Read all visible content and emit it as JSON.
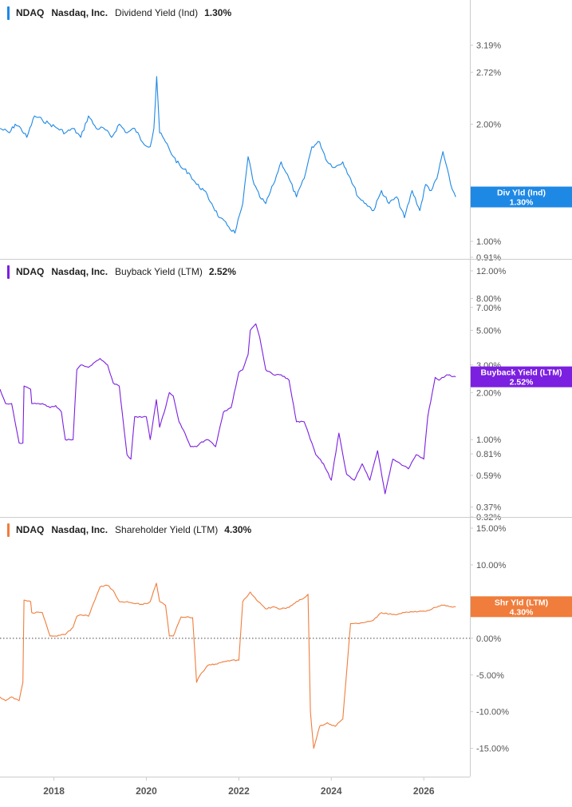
{
  "chart_data": [
    {
      "type": "line",
      "ticker": "NDAQ",
      "company": "Nasdaq, Inc.",
      "metric": "Dividend Yield (Ind)",
      "value_label": "1.30%",
      "color": "#1e88e5",
      "scale": "log",
      "ylim": [
        0.91,
        3.6
      ],
      "yticks": [
        {
          "v": 3.19,
          "label": "3.19%"
        },
        {
          "v": 2.72,
          "label": "2.72%"
        },
        {
          "v": 2.0,
          "label": "2.00%"
        },
        {
          "v": 1.0,
          "label": "1.00%"
        },
        {
          "v": 0.91,
          "label": "0.91%"
        }
      ],
      "end_badge": {
        "line1": "Div Yld (Ind)",
        "line2": "1.30%",
        "value": 1.3
      },
      "x": [
        "2016-11-01",
        "2017-01-15",
        "2017-03-01",
        "2017-04-15",
        "2017-06-01",
        "2017-08-01",
        "2017-10-01",
        "2017-12-01",
        "2018-02-01",
        "2018-04-01",
        "2018-06-01",
        "2018-08-01",
        "2018-10-01",
        "2018-12-01",
        "2019-02-01",
        "2019-04-01",
        "2019-06-01",
        "2019-08-01",
        "2019-10-01",
        "2019-12-01",
        "2020-02-01",
        "2020-03-01",
        "2020-03-23",
        "2020-04-15",
        "2020-06-01",
        "2020-08-01",
        "2020-10-01",
        "2020-12-01",
        "2021-02-01",
        "2021-04-01",
        "2021-06-01",
        "2021-08-01",
        "2021-10-01",
        "2021-12-01",
        "2022-02-01",
        "2022-03-15",
        "2022-05-01",
        "2022-06-15",
        "2022-08-01",
        "2022-10-01",
        "2022-12-01",
        "2023-02-01",
        "2023-04-01",
        "2023-06-01",
        "2023-08-01",
        "2023-10-01",
        "2023-12-01",
        "2024-02-01",
        "2024-04-01",
        "2024-06-01",
        "2024-08-01",
        "2024-10-01",
        "2024-12-01",
        "2025-02-01",
        "2025-04-01",
        "2025-06-01",
        "2025-08-01",
        "2025-10-01",
        "2025-12-01",
        "2026-01-15",
        "2026-03-01",
        "2026-04-15",
        "2026-06-01",
        "2026-08-01",
        "2026-09-10"
      ],
      "values": [
        1.95,
        1.9,
        2.0,
        1.95,
        1.85,
        2.1,
        2.05,
        2.0,
        1.95,
        1.9,
        1.95,
        1.85,
        2.1,
        1.95,
        1.95,
        1.85,
        2.0,
        1.9,
        1.95,
        1.8,
        1.75,
        1.95,
        2.65,
        1.9,
        1.8,
        1.65,
        1.55,
        1.5,
        1.4,
        1.35,
        1.25,
        1.15,
        1.1,
        1.05,
        1.25,
        1.65,
        1.4,
        1.3,
        1.25,
        1.4,
        1.6,
        1.45,
        1.3,
        1.45,
        1.75,
        1.8,
        1.6,
        1.55,
        1.6,
        1.45,
        1.3,
        1.25,
        1.2,
        1.35,
        1.25,
        1.3,
        1.15,
        1.35,
        1.2,
        1.4,
        1.35,
        1.45,
        1.7,
        1.4,
        1.3
      ]
    },
    {
      "type": "line",
      "ticker": "NDAQ",
      "company": "Nasdaq, Inc.",
      "metric": "Buyback Yield (LTM)",
      "value_label": "2.52%",
      "color": "#7b1fe0",
      "scale": "log",
      "ylim": [
        0.32,
        12.0
      ],
      "yticks": [
        {
          "v": 12.0,
          "label": "12.00%"
        },
        {
          "v": 8.0,
          "label": "8.00%"
        },
        {
          "v": 7.0,
          "label": "7.00%"
        },
        {
          "v": 5.0,
          "label": "5.00%"
        },
        {
          "v": 3.0,
          "label": "3.00%"
        },
        {
          "v": 2.0,
          "label": "2.00%"
        },
        {
          "v": 1.0,
          "label": "1.00%"
        },
        {
          "v": 0.81,
          "label": "0.81%"
        },
        {
          "v": 0.59,
          "label": "0.59%"
        },
        {
          "v": 0.37,
          "label": "0.37%"
        },
        {
          "v": 0.32,
          "label": "0.32%"
        }
      ],
      "end_badge": {
        "line1": "Buyback Yield (LTM)",
        "line2": "2.52%",
        "value": 2.52
      },
      "x": [
        "2016-11-01",
        "2016-12-15",
        "2017-02-01",
        "2017-04-01",
        "2017-05-01",
        "2017-05-10",
        "2017-07-01",
        "2017-07-10",
        "2017-10-01",
        "2017-12-01",
        "2018-01-15",
        "2018-03-01",
        "2018-04-01",
        "2018-06-01",
        "2018-07-01",
        "2018-08-01",
        "2018-10-01",
        "2019-01-01",
        "2019-03-01",
        "2019-04-15",
        "2019-06-01",
        "2019-08-01",
        "2019-09-01",
        "2019-10-01",
        "2020-01-01",
        "2020-02-01",
        "2020-03-20",
        "2020-04-15",
        "2020-06-01",
        "2020-07-01",
        "2020-08-01",
        "2020-09-15",
        "2020-11-01",
        "2020-12-15",
        "2021-02-01",
        "2021-03-01",
        "2021-05-01",
        "2021-07-01",
        "2021-09-01",
        "2021-11-01",
        "2022-01-01",
        "2022-02-01",
        "2022-03-15",
        "2022-04-01",
        "2022-05-15",
        "2022-06-15",
        "2022-08-01",
        "2022-10-01",
        "2022-12-01",
        "2023-02-01",
        "2023-04-01",
        "2023-06-01",
        "2023-08-01",
        "2023-09-01",
        "2023-11-01",
        "2024-01-01",
        "2024-03-01",
        "2024-05-01",
        "2024-07-01",
        "2024-09-01",
        "2024-11-01",
        "2025-01-01",
        "2025-03-01",
        "2025-05-01",
        "2025-07-01",
        "2025-09-01",
        "2025-11-01",
        "2026-01-01",
        "2026-02-01",
        "2026-04-01",
        "2026-05-01",
        "2026-07-01",
        "2026-09-10"
      ],
      "values": [
        2.1,
        1.7,
        1.7,
        0.95,
        0.95,
        2.2,
        2.1,
        1.7,
        1.7,
        1.6,
        1.65,
        1.5,
        1.0,
        1.0,
        2.8,
        3.0,
        2.9,
        3.3,
        3.0,
        2.3,
        2.2,
        0.8,
        0.75,
        1.4,
        1.4,
        1.0,
        1.8,
        1.2,
        1.6,
        2.0,
        1.9,
        1.3,
        1.1,
        0.9,
        0.9,
        0.95,
        1.0,
        0.9,
        1.5,
        1.6,
        2.7,
        2.8,
        3.5,
        5.0,
        5.5,
        4.5,
        2.8,
        2.6,
        2.6,
        2.4,
        1.3,
        1.3,
        0.95,
        0.8,
        0.7,
        0.55,
        1.1,
        0.6,
        0.55,
        0.7,
        0.55,
        0.85,
        0.45,
        0.75,
        0.7,
        0.65,
        0.8,
        0.75,
        1.4,
        2.5,
        2.4,
        2.6,
        2.52
      ]
    },
    {
      "type": "line",
      "ticker": "NDAQ",
      "company": "Nasdaq, Inc.",
      "metric": "Shareholder Yield (LTM)",
      "value_label": "4.30%",
      "color": "#f07d3c",
      "scale": "linear",
      "ylim": [
        -15.8,
        15.0
      ],
      "yticks": [
        {
          "v": 15.0,
          "label": "15.00%"
        },
        {
          "v": 10.0,
          "label": "10.00%"
        },
        {
          "v": 5.0,
          "label": "5.00%"
        },
        {
          "v": 0.0,
          "label": "0.00%"
        },
        {
          "v": -5.0,
          "label": "-5.00%"
        },
        {
          "v": -10.0,
          "label": "-10.00%"
        },
        {
          "v": -15.0,
          "label": "-15.00%"
        }
      ],
      "zero_line": true,
      "end_badge": {
        "line1": "Shr Yld (LTM)",
        "line2": "4.30%",
        "value": 4.3
      },
      "x": [
        "2016-11-01",
        "2016-12-15",
        "2017-02-01",
        "2017-04-01",
        "2017-05-01",
        "2017-05-10",
        "2017-07-01",
        "2017-07-10",
        "2017-10-01",
        "2017-12-01",
        "2018-01-15",
        "2018-03-01",
        "2018-04-01",
        "2018-06-01",
        "2018-07-01",
        "2018-08-01",
        "2018-10-01",
        "2019-01-01",
        "2019-03-01",
        "2019-04-15",
        "2019-06-01",
        "2019-08-01",
        "2019-10-01",
        "2020-01-01",
        "2020-02-01",
        "2020-03-20",
        "2020-04-15",
        "2020-06-01",
        "2020-07-01",
        "2020-08-01",
        "2020-10-01",
        "2020-12-01",
        "2021-01-01",
        "2021-02-01",
        "2021-03-01",
        "2021-05-01",
        "2021-07-01",
        "2021-09-01",
        "2021-11-01",
        "2022-01-01",
        "2022-02-01",
        "2022-04-01",
        "2022-06-01",
        "2022-08-01",
        "2022-10-01",
        "2022-12-01",
        "2023-02-01",
        "2023-04-01",
        "2023-06-01",
        "2023-07-01",
        "2023-07-20",
        "2023-08-15",
        "2023-10-01",
        "2023-12-01",
        "2024-02-01",
        "2024-04-01",
        "2024-06-01",
        "2024-08-01",
        "2024-10-01",
        "2024-12-01",
        "2025-02-01",
        "2025-04-01",
        "2025-06-01",
        "2025-08-01",
        "2025-10-01",
        "2025-12-01",
        "2026-02-01",
        "2026-04-01",
        "2026-06-01",
        "2026-08-01",
        "2026-09-10"
      ],
      "values": [
        -8.0,
        -8.5,
        -8.0,
        -8.5,
        -6.0,
        5.2,
        5.0,
        3.5,
        3.5,
        0.3,
        0.3,
        0.5,
        0.5,
        1.5,
        3.0,
        3.2,
        3.0,
        7.0,
        7.2,
        6.5,
        5.0,
        5.0,
        4.7,
        4.7,
        5.0,
        7.5,
        5.0,
        4.5,
        0.3,
        0.3,
        2.9,
        2.9,
        2.8,
        -6.0,
        -5.0,
        -3.7,
        -3.5,
        -3.2,
        -3.0,
        -3.0,
        5.0,
        6.3,
        5.0,
        4.0,
        4.3,
        4.0,
        4.2,
        5.0,
        5.5,
        6.0,
        -10.0,
        -15.0,
        -12.0,
        -11.5,
        -12.0,
        -11.0,
        2.0,
        2.0,
        2.2,
        2.5,
        3.5,
        3.3,
        3.2,
        3.5,
        3.6,
        3.7,
        3.8,
        4.2,
        4.5,
        4.3,
        4.3
      ]
    }
  ],
  "x_axis": {
    "start": "2016-11-01",
    "end": "2026-12-31",
    "ticks": [
      {
        "date": "2018-01-01",
        "label": "2018"
      },
      {
        "date": "2020-01-01",
        "label": "2020"
      },
      {
        "date": "2022-01-01",
        "label": "2022"
      },
      {
        "date": "2024-01-01",
        "label": "2024"
      },
      {
        "date": "2026-01-01",
        "label": "2026"
      }
    ]
  },
  "colors": {
    "grid": "#cccccc",
    "text": "#222222",
    "axis_text": "#555555"
  }
}
